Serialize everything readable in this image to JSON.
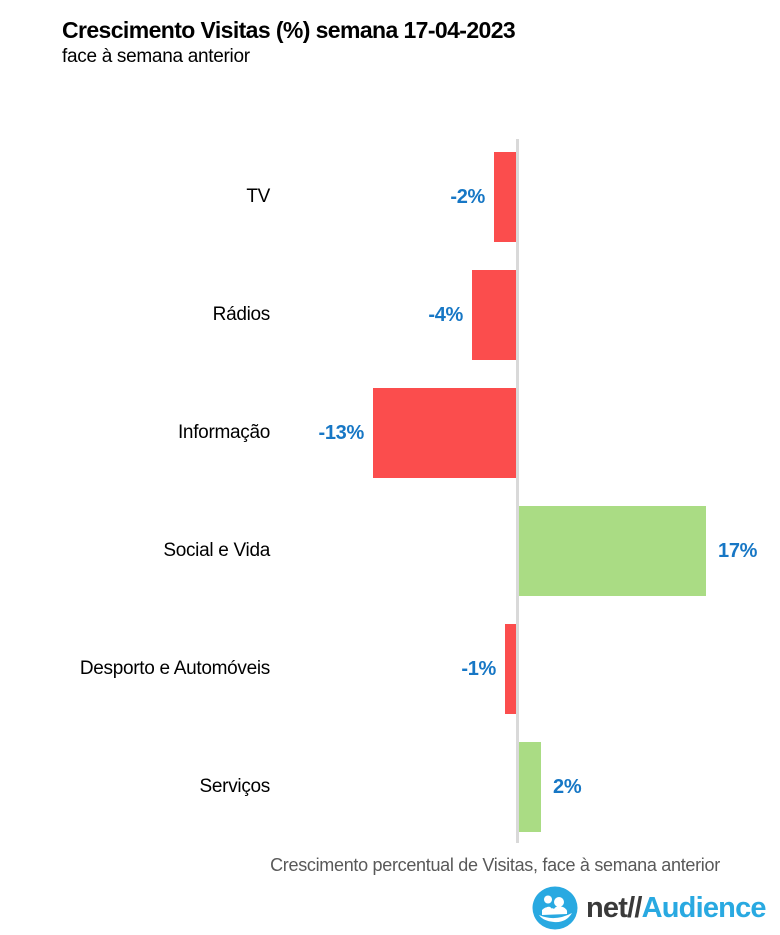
{
  "header": {
    "title": "Crescimento Visitas (%) semana 17-04-2023",
    "subtitle": "face à semana anterior"
  },
  "chart_data": {
    "type": "bar",
    "orientation": "horizontal",
    "categories": [
      "TV",
      "Rádios",
      "Informação",
      "Social e Vida",
      "Desporto e Automóveis",
      "Serviços"
    ],
    "values": [
      -2,
      -4,
      -13,
      17,
      -1,
      2
    ],
    "data_labels": [
      "-2%",
      "-4%",
      "-13%",
      "17%",
      "-1%",
      "2%"
    ],
    "xlabel": "Crescimento percentual de Visitas, face à semana anterior",
    "xlim": [
      -13,
      17
    ],
    "grid": "off",
    "legend": "none",
    "colors": {
      "negative_bar": "#FB4D4D",
      "positive_bar": "#AADC84",
      "value_label": "#1777C5",
      "zero_line": "#D9D9D9",
      "category_label": "#000000",
      "axis_label": "#595959"
    }
  },
  "footer": {
    "logo": {
      "icon": "netaudience-people-icon",
      "text_dark": "net//",
      "text_accent": "Audience",
      "accent_color": "#29A9E1",
      "dark_color": "#3a3a3a"
    }
  }
}
